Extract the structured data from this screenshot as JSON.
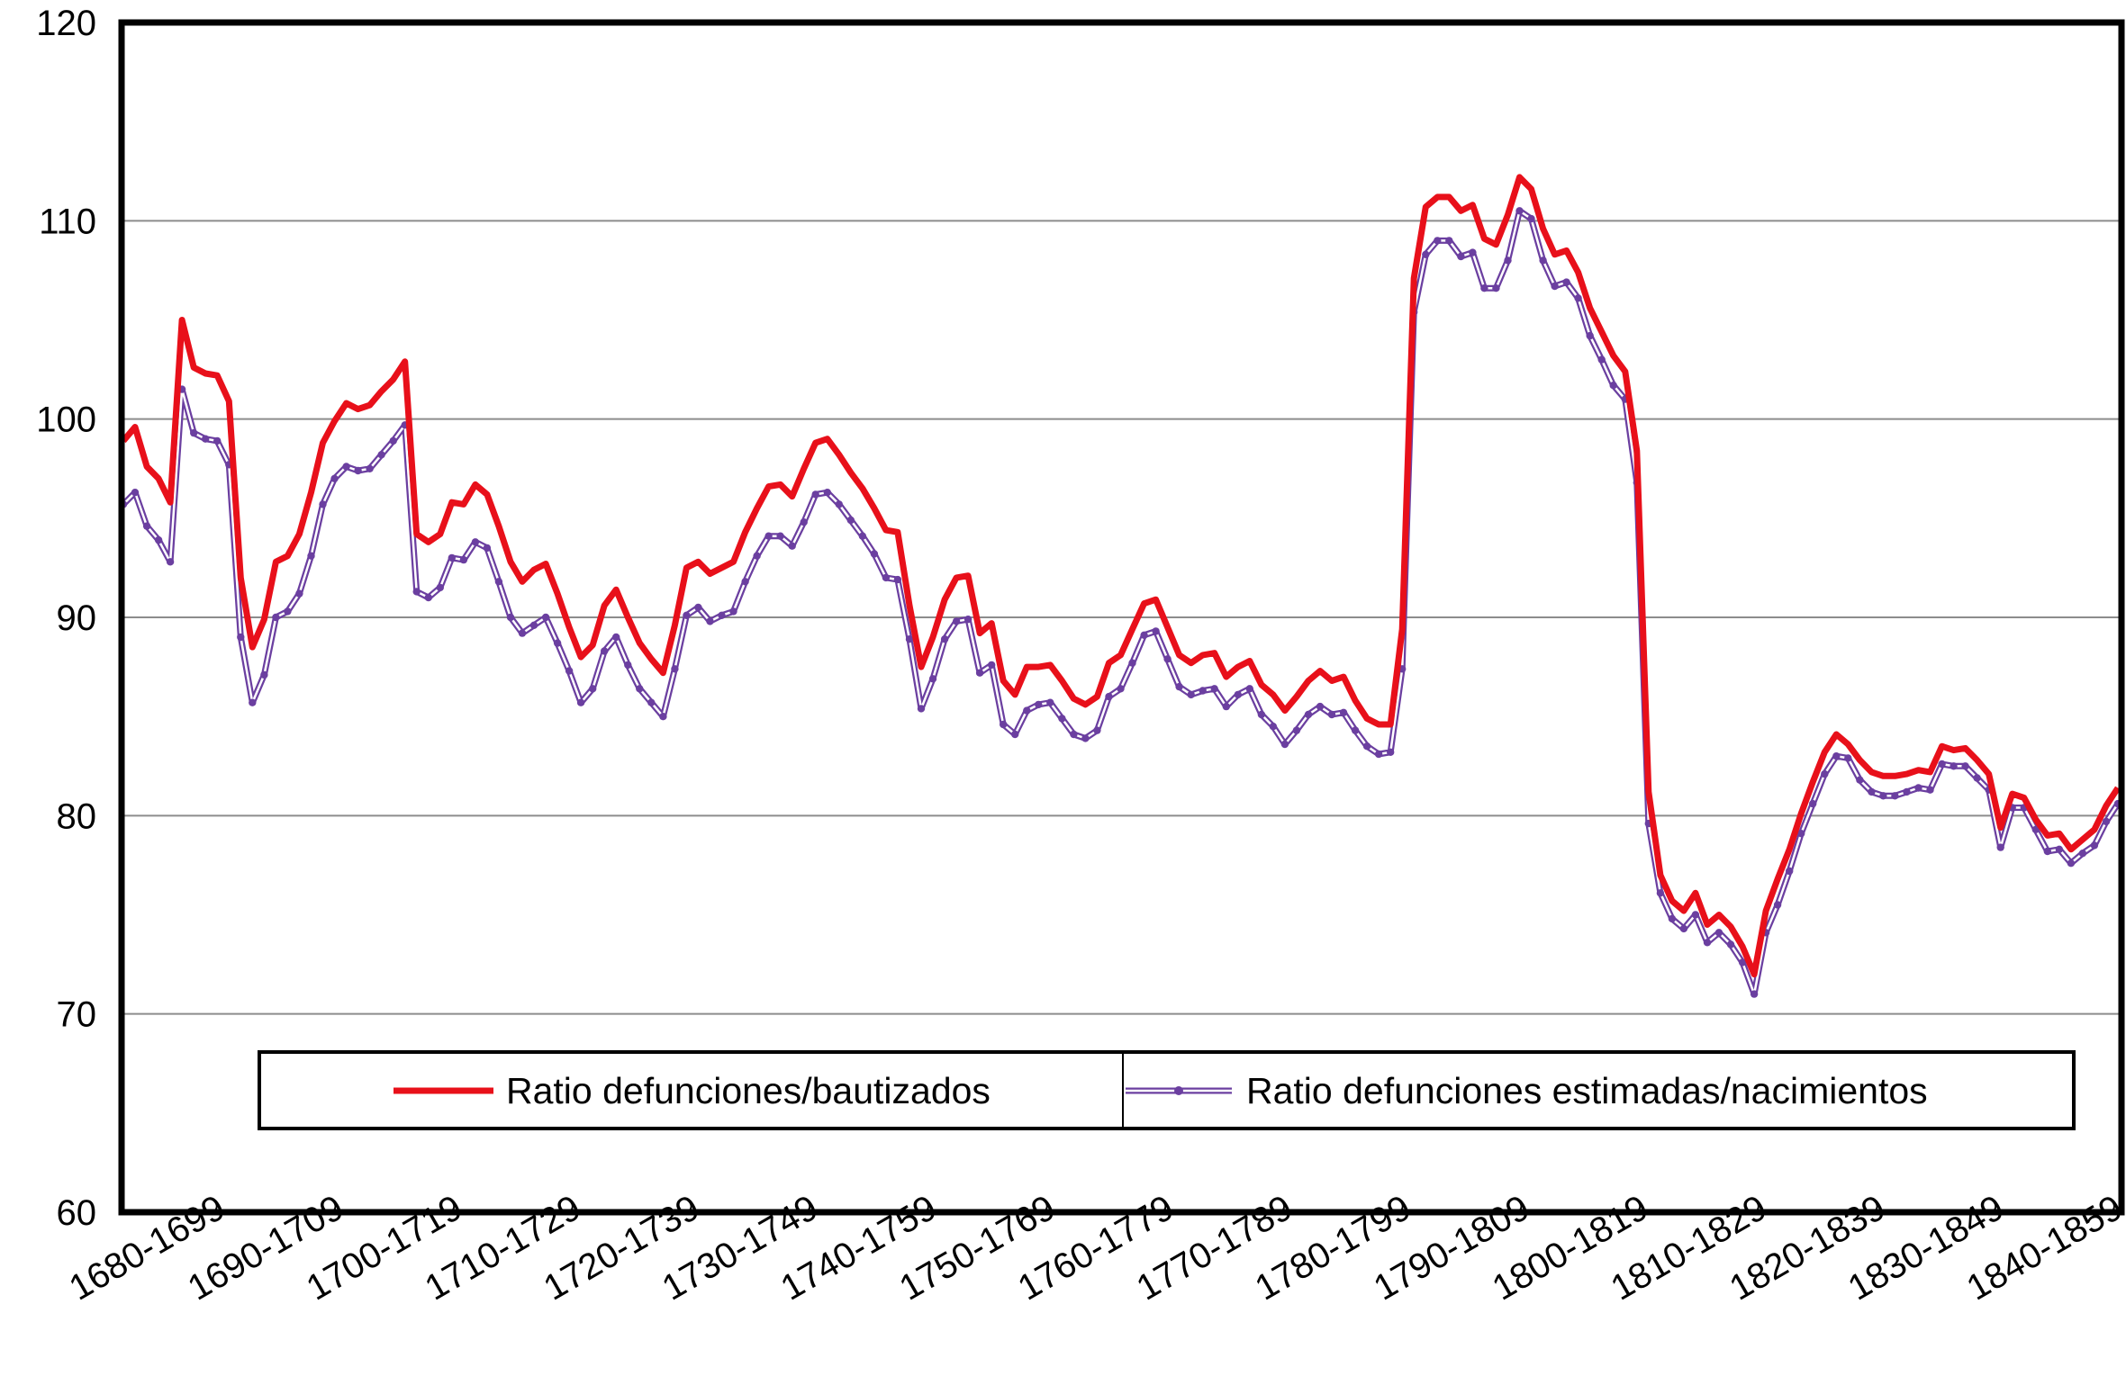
{
  "chart_data": {
    "type": "line",
    "ylim": [
      60,
      120
    ],
    "yticks": [
      "60",
      "70",
      "80",
      "90",
      "100",
      "110",
      "120"
    ],
    "xtick_labels": [
      "1680-1699",
      "1690-1709",
      "1700-1719",
      "1710-1729",
      "1720-1739",
      "1730-1749",
      "1740-1759",
      "1750-1769",
      "1760-1779",
      "1770-1789",
      "1780-1799",
      "1790-1809",
      "1800-1819",
      "1810-1829",
      "1820-1839",
      "1830-1849",
      "1840-1859"
    ],
    "grid": true,
    "legend_position": "bottom",
    "series": [
      {
        "name": "Ratio defunciones/bautizados",
        "color": "#e8101a",
        "values": [
          98.9,
          99.6,
          97.6,
          97.0,
          95.8,
          105.0,
          102.6,
          102.3,
          102.2,
          100.9,
          92.0,
          88.5,
          89.9,
          92.8,
          93.1,
          94.2,
          96.3,
          98.8,
          99.9,
          100.8,
          100.5,
          100.7,
          101.4,
          102.0,
          102.9,
          94.2,
          93.8,
          94.2,
          95.8,
          95.7,
          96.7,
          96.2,
          94.6,
          92.8,
          91.8,
          92.4,
          92.7,
          91.2,
          89.5,
          88.0,
          88.6,
          90.6,
          91.4,
          90.0,
          88.7,
          87.9,
          87.2,
          89.6,
          92.5,
          92.8,
          92.2,
          92.5,
          92.8,
          94.3,
          95.5,
          96.6,
          96.7,
          96.1,
          97.5,
          98.8,
          99.0,
          98.2,
          97.3,
          96.5,
          95.5,
          94.4,
          94.3,
          90.6,
          87.5,
          89.0,
          90.9,
          92.0,
          92.1,
          89.2,
          89.7,
          86.8,
          86.1,
          87.5,
          87.5,
          87.6,
          86.8,
          85.9,
          85.6,
          86.0,
          87.7,
          88.1,
          89.4,
          90.7,
          90.9,
          89.5,
          88.1,
          87.7,
          88.1,
          88.2,
          87.0,
          87.5,
          87.8,
          86.6,
          86.1,
          85.3,
          86.0,
          86.8,
          87.3,
          86.8,
          87.0,
          85.8,
          84.9,
          84.6,
          84.6,
          89.4,
          107.1,
          110.7,
          111.2,
          111.2,
          110.5,
          110.8,
          109.1,
          108.8,
          110.3,
          112.2,
          111.6,
          109.6,
          108.3,
          108.5,
          107.4,
          105.6,
          104.4,
          103.2,
          102.4,
          98.4,
          81.2,
          77.0,
          75.7,
          75.2,
          76.1,
          74.5,
          75.0,
          74.4,
          73.4,
          72.0,
          75.2,
          76.8,
          78.3,
          80.1,
          81.7,
          83.2,
          84.1,
          83.6,
          82.8,
          82.2,
          82.0,
          82.0,
          82.1,
          82.3,
          82.2,
          83.5,
          83.3,
          83.4,
          82.8,
          82.1,
          79.4,
          81.1,
          80.9,
          79.8,
          79.0,
          79.1,
          78.3,
          78.8,
          79.3,
          80.5,
          81.4
        ]
      },
      {
        "name": "Ratio defunciones estimadas/nacimientos",
        "color": "#6b3fa0",
        "values": [
          95.7,
          96.3,
          94.6,
          93.9,
          92.8,
          101.5,
          99.3,
          99.0,
          98.9,
          97.7,
          89.0,
          85.7,
          87.1,
          90.0,
          90.3,
          91.2,
          93.1,
          95.7,
          97.0,
          97.6,
          97.4,
          97.5,
          98.2,
          98.9,
          99.7,
          91.3,
          91.0,
          91.5,
          93.0,
          92.9,
          93.8,
          93.5,
          91.8,
          90.0,
          89.2,
          89.6,
          90.0,
          88.7,
          87.3,
          85.7,
          86.4,
          88.3,
          89.0,
          87.6,
          86.4,
          85.7,
          85.0,
          87.4,
          90.1,
          90.5,
          89.8,
          90.1,
          90.3,
          91.8,
          93.1,
          94.1,
          94.1,
          93.6,
          94.8,
          96.2,
          96.3,
          95.7,
          94.9,
          94.1,
          93.2,
          92.0,
          91.9,
          88.9,
          85.4,
          86.9,
          88.9,
          89.8,
          89.9,
          87.2,
          87.6,
          84.6,
          84.1,
          85.3,
          85.6,
          85.7,
          84.9,
          84.1,
          83.9,
          84.3,
          86.0,
          86.4,
          87.7,
          89.1,
          89.3,
          87.9,
          86.5,
          86.1,
          86.3,
          86.4,
          85.5,
          86.1,
          86.4,
          85.1,
          84.5,
          83.6,
          84.3,
          85.1,
          85.5,
          85.1,
          85.2,
          84.3,
          83.5,
          83.1,
          83.2,
          87.4,
          105.4,
          108.3,
          109.0,
          109.0,
          108.2,
          108.4,
          106.6,
          106.6,
          108.0,
          110.5,
          110.1,
          108.0,
          106.7,
          106.9,
          106.1,
          104.2,
          103.0,
          101.7,
          101.0,
          96.8,
          79.6,
          76.1,
          74.8,
          74.3,
          75.0,
          73.6,
          74.1,
          73.5,
          72.6,
          71.0,
          74.1,
          75.5,
          77.2,
          79.1,
          80.6,
          82.1,
          83.0,
          82.9,
          81.8,
          81.2,
          81.0,
          81.0,
          81.2,
          81.4,
          81.3,
          82.6,
          82.5,
          82.5,
          81.9,
          81.3,
          78.4,
          80.4,
          80.4,
          79.3,
          78.2,
          78.3,
          77.6,
          78.1,
          78.5,
          79.7,
          80.6
        ]
      }
    ]
  }
}
